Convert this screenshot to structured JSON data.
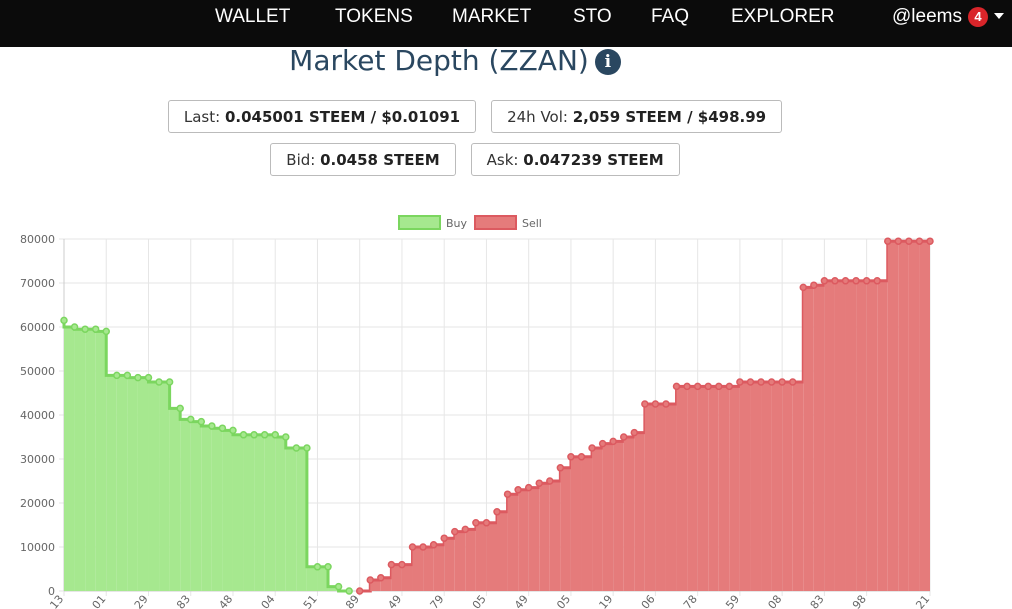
{
  "nav": {
    "items": [
      "WALLET",
      "TOKENS",
      "MARKET",
      "STO",
      "FAQ",
      "EXPLORER"
    ],
    "user": "@leems",
    "badge": "4"
  },
  "header": {
    "title": "Market Depth (ZZAN)",
    "info_icon": "i"
  },
  "stats": [
    {
      "label": "Last:",
      "value": "0.045001 STEEM / $0.01091"
    },
    {
      "label": "24h Vol:",
      "value": "2,059 STEEM / $498.99"
    },
    {
      "label": "Bid:",
      "value": "0.0458 STEEM"
    },
    {
      "label": "Ask:",
      "value": "0.047239 STEEM"
    }
  ],
  "chart_data": {
    "type": "line",
    "stepped": true,
    "fill": true,
    "grid": true,
    "legend": "top",
    "categories": [
      ".13",
      null,
      null,
      null,
      "01",
      null,
      null,
      null,
      "29",
      null,
      null,
      null,
      "83",
      null,
      null,
      null,
      "48",
      null,
      null,
      null,
      "04",
      null,
      null,
      null,
      "51",
      null,
      null,
      null,
      "89",
      null,
      null,
      null,
      "49",
      null,
      null,
      null,
      "79",
      null,
      null,
      null,
      "05",
      null,
      null,
      null,
      "49",
      null,
      null,
      null,
      "05",
      null,
      null,
      null,
      "19",
      null,
      null,
      null,
      "06",
      null,
      null,
      null,
      "78",
      null,
      null,
      null,
      "59",
      null,
      null,
      null,
      "08",
      null,
      null,
      null,
      "83",
      null,
      null,
      null,
      "98",
      null,
      null,
      null,
      null,
      null,
      "21"
    ],
    "series": [
      {
        "name": "Buy",
        "color": "#7bd65f",
        "fill": "#a6e88f",
        "step": "before",
        "values": [
          61500,
          60000,
          59500,
          59500,
          59000,
          49000,
          49000,
          48500,
          48500,
          47500,
          47500,
          41500,
          39000,
          38500,
          37500,
          37000,
          36500,
          35500,
          35500,
          35500,
          35500,
          35000,
          32500,
          32500,
          5500,
          5500,
          1000,
          0,
          null,
          null,
          null,
          null,
          null,
          null,
          null,
          null,
          null,
          null,
          null,
          null,
          null,
          null,
          null,
          null,
          null,
          null,
          null,
          null,
          null,
          null,
          null,
          null,
          null,
          null,
          null,
          null,
          null,
          null,
          null,
          null,
          null,
          null,
          null,
          null,
          null,
          null,
          null,
          null,
          null,
          null,
          null,
          null,
          null,
          null,
          null,
          null,
          null,
          null,
          null,
          null,
          null,
          null,
          null
        ]
      },
      {
        "name": "Sell",
        "color": "#dc5a60",
        "fill": "#e57b7b",
        "step": "after",
        "values": [
          null,
          null,
          null,
          null,
          null,
          null,
          null,
          null,
          null,
          null,
          null,
          null,
          null,
          null,
          null,
          null,
          null,
          null,
          null,
          null,
          null,
          null,
          null,
          null,
          null,
          null,
          null,
          null,
          0,
          2500,
          3000,
          6000,
          6000,
          10000,
          10000,
          10500,
          12000,
          13500,
          14000,
          15500,
          15500,
          18000,
          22000,
          23000,
          23500,
          24500,
          25000,
          28000,
          30500,
          30500,
          32500,
          33500,
          34000,
          35000,
          36000,
          42500,
          42500,
          42500,
          46500,
          46500,
          46500,
          46500,
          46500,
          46500,
          47500,
          47500,
          47500,
          47500,
          47500,
          47500,
          69000,
          69500,
          70500,
          70500,
          70500,
          70500,
          70500,
          70500,
          79500,
          79500,
          79500,
          79500,
          79500
        ]
      }
    ],
    "ylim": [
      0,
      80000
    ],
    "yticks": [
      0,
      10000,
      20000,
      30000,
      40000,
      50000,
      60000,
      70000,
      80000
    ]
  }
}
